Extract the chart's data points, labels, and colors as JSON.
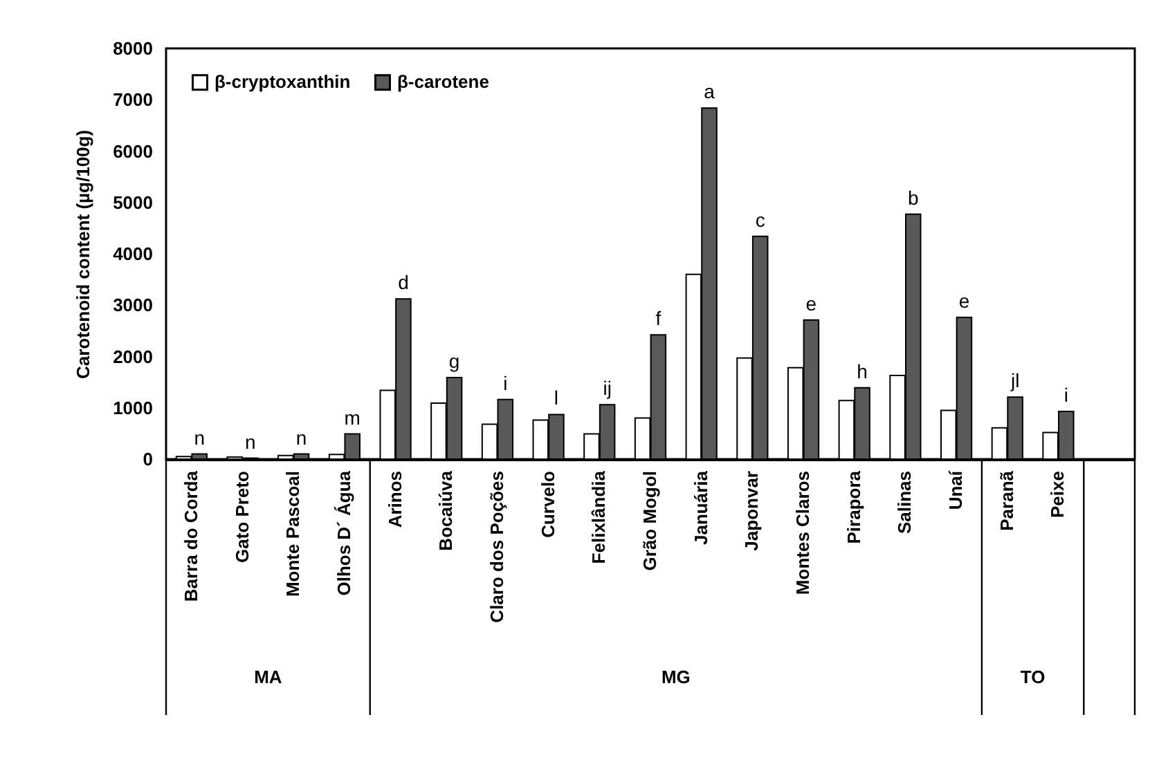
{
  "chart_data": {
    "type": "bar",
    "ylabel": "Carotenoid content (µg/100g)",
    "categories": [
      "Barra do Corda",
      "Gato Preto",
      "Monte Pascoal",
      "Olhos D´ Água",
      "Arinos",
      "Bocaiúva",
      "Claro dos Poções",
      "Curvelo",
      "Felixlândia",
      "Grão Mogol",
      "Januária",
      "Japonvar",
      "Montes Claros",
      "Pirapora",
      "Salinas",
      "Unaí",
      "Paranã",
      "Peixe",
      null
    ],
    "series": [
      {
        "name": "β-cryptoxanthin",
        "color": "#ffffff",
        "values": [
          50,
          40,
          70,
          90,
          1340,
          1090,
          680,
          760,
          490,
          800,
          3600,
          1970,
          1780,
          1140,
          1630,
          950,
          610,
          520,
          null
        ]
      },
      {
        "name": "β-carotene",
        "color": "#595959",
        "values": [
          100,
          20,
          100,
          490,
          3120,
          1590,
          1160,
          870,
          1060,
          2420,
          6840,
          4340,
          2710,
          1390,
          4770,
          2760,
          1210,
          930,
          null
        ]
      }
    ],
    "ylim": [
      0,
      8000
    ],
    "yticks": [
      0,
      1000,
      2000,
      3000,
      4000,
      5000,
      6000,
      7000,
      8000
    ],
    "grid": false,
    "legend": "top left",
    "annotations": [
      {
        "text": "n",
        "x": "Barra do Corda",
        "y": 100
      },
      {
        "text": "n",
        "x": "Gato Preto",
        "y": 20
      },
      {
        "text": "n",
        "x": "Monte Pascoal",
        "y": 100
      },
      {
        "text": "m",
        "x": "Olhos D´ Água",
        "y": 490
      },
      {
        "text": "d",
        "x": "Arinos",
        "y": 3120
      },
      {
        "text": "g",
        "x": "Bocaiúva",
        "y": 1590
      },
      {
        "text": "i",
        "x": "Claro dos Poções",
        "y": 1160
      },
      {
        "text": "l",
        "x": "Curvelo",
        "y": 870
      },
      {
        "text": "ij",
        "x": "Felixlândia",
        "y": 1060
      },
      {
        "text": "f",
        "x": "Grão Mogol",
        "y": 2420
      },
      {
        "text": "a",
        "x": "Januária",
        "y": 6840
      },
      {
        "text": "c",
        "x": "Japonvar",
        "y": 4340
      },
      {
        "text": "e",
        "x": "Montes Claros",
        "y": 2710
      },
      {
        "text": "h",
        "x": "Pirapora",
        "y": 1390
      },
      {
        "text": "b",
        "x": "Salinas",
        "y": 4770
      },
      {
        "text": "e",
        "x": "Unaí",
        "y": 2760
      },
      {
        "text": "jl",
        "x": "Paranã",
        "y": 1210
      },
      {
        "text": "i",
        "x": "Peixe",
        "y": 930
      },
      "MA",
      "MG",
      "TO"
    ]
  }
}
